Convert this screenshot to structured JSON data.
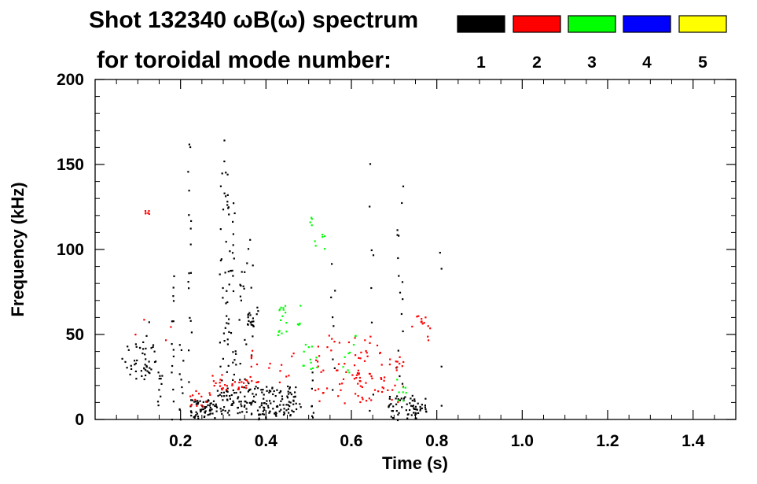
{
  "chart_data": {
    "type": "scatter",
    "title": "Shot 132340 ωB(ω) spectrum",
    "subtitle": "for toroidal mode number:",
    "xlabel": "Time (s)",
    "ylabel": "Frequency (kHz)",
    "xlim": [
      0.0,
      1.5
    ],
    "ylim": [
      0,
      200
    ],
    "x_ticks": [
      0.2,
      0.4,
      0.6,
      0.8,
      1.0,
      1.2,
      1.4
    ],
    "x_tick_labels": [
      "0.2",
      "0.4",
      "0.6",
      "0.8",
      "1.0",
      "1.2",
      "1.4"
    ],
    "y_ticks": [
      0,
      50,
      100,
      150,
      200
    ],
    "y_tick_labels": [
      "0",
      "50",
      "100",
      "150",
      "200"
    ],
    "grid": false,
    "legend_position": "top-right",
    "series": [
      {
        "name": "1",
        "color": "#000000",
        "clusters": [
          {
            "t": [
              0.06,
              0.14
            ],
            "f": [
              24,
              46
            ],
            "density": 40
          },
          {
            "t": [
              0.11,
              0.14
            ],
            "f": [
              10,
              60
            ],
            "density": 8
          },
          {
            "t": [
              0.145,
              0.16
            ],
            "f": [
              2,
              30
            ],
            "density": 10
          },
          {
            "t": [
              0.175,
              0.185
            ],
            "f": [
              0,
              85
            ],
            "density": 14
          },
          {
            "t": [
              0.195,
              0.205
            ],
            "f": [
              0,
              50
            ],
            "density": 10
          },
          {
            "t": [
              0.215,
              0.225
            ],
            "f": [
              0,
              165
            ],
            "density": 18
          },
          {
            "t": [
              0.22,
              0.28
            ],
            "f": [
              1,
              12
            ],
            "density": 60
          },
          {
            "t": [
              0.28,
              0.47
            ],
            "f": [
              3,
              20
            ],
            "density": 160
          },
          {
            "t": [
              0.29,
              0.31
            ],
            "f": [
              10,
              170
            ],
            "density": 40
          },
          {
            "t": [
              0.31,
              0.33
            ],
            "f": [
              20,
              135
            ],
            "density": 30
          },
          {
            "t": [
              0.355,
              0.37
            ],
            "f": [
              56,
              64
            ],
            "density": 14
          },
          {
            "t": [
              0.33,
              0.37
            ],
            "f": [
              20,
              110
            ],
            "density": 25
          },
          {
            "t": [
              0.375,
              0.38
            ],
            "f": [
              60,
              75
            ],
            "density": 3
          },
          {
            "t": [
              0.38,
              0.48
            ],
            "f": [
              0,
              10
            ],
            "density": 20
          },
          {
            "t": [
              0.5,
              0.51
            ],
            "f": [
              0,
              30
            ],
            "density": 8
          },
          {
            "t": [
              0.55,
              0.56
            ],
            "f": [
              0,
              95
            ],
            "density": 8
          },
          {
            "t": [
              0.64,
              0.65
            ],
            "f": [
              0,
              155
            ],
            "density": 8
          },
          {
            "t": [
              0.685,
              0.78
            ],
            "f": [
              0,
              15
            ],
            "density": 60
          },
          {
            "t": [
              0.7,
              0.72
            ],
            "f": [
              15,
              145
            ],
            "density": 16
          },
          {
            "t": [
              0.74,
              0.76
            ],
            "f": [
              0,
              10
            ],
            "density": 8
          },
          {
            "t": [
              0.8,
              0.81
            ],
            "f": [
              0,
              110
            ],
            "density": 4
          }
        ]
      },
      {
        "name": "2",
        "color": "#ff0000",
        "clusters": [
          {
            "t": [
              0.115,
              0.125
            ],
            "f": [
              120,
              126
            ],
            "density": 6
          },
          {
            "t": [
              0.09,
              0.18
            ],
            "f": [
              40,
              60
            ],
            "density": 4
          },
          {
            "t": [
              0.22,
              0.27
            ],
            "f": [
              8,
              18
            ],
            "density": 14
          },
          {
            "t": [
              0.27,
              0.31
            ],
            "f": [
              18,
              27
            ],
            "density": 14
          },
          {
            "t": [
              0.31,
              0.36
            ],
            "f": [
              18,
              24
            ],
            "density": 14
          },
          {
            "t": [
              0.36,
              0.47
            ],
            "f": [
              22,
              42
            ],
            "density": 20
          },
          {
            "t": [
              0.5,
              0.67
            ],
            "f": [
              10,
              50
            ],
            "density": 70
          },
          {
            "t": [
              0.67,
              0.72
            ],
            "f": [
              10,
              40
            ],
            "density": 20
          },
          {
            "t": [
              0.74,
              0.78
            ],
            "f": [
              55,
              62
            ],
            "density": 10
          },
          {
            "t": [
              0.775,
              0.785
            ],
            "f": [
              45,
              60
            ],
            "density": 4
          },
          {
            "t": [
              0.6,
              0.62
            ],
            "f": [
              20,
              40
            ],
            "density": 10
          }
        ]
      },
      {
        "name": "3",
        "color": "#00ff00",
        "clusters": [
          {
            "t": [
              0.42,
              0.48
            ],
            "f": [
              50,
              70
            ],
            "density": 20
          },
          {
            "t": [
              0.5,
              0.54
            ],
            "f": [
              100,
              122
            ],
            "density": 10
          },
          {
            "t": [
              0.48,
              0.52
            ],
            "f": [
              30,
              45
            ],
            "density": 12
          },
          {
            "t": [
              0.57,
              0.6
            ],
            "f": [
              28,
              40
            ],
            "density": 6
          },
          {
            "t": [
              0.7,
              0.73
            ],
            "f": [
              10,
              24
            ],
            "density": 8
          },
          {
            "t": [
              0.6,
              0.61
            ],
            "f": [
              40,
              50
            ],
            "density": 3
          }
        ]
      },
      {
        "name": "4",
        "color": "#0000ff",
        "clusters": []
      },
      {
        "name": "5",
        "color": "#ffff00",
        "clusters": []
      }
    ]
  }
}
